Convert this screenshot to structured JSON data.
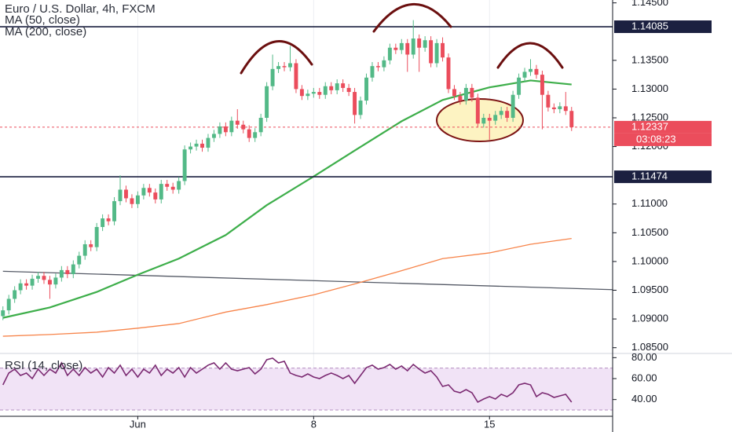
{
  "chart_data": {
    "type": "candlestick",
    "title": "Euro / U.S. Dollar, 4h, FXCM",
    "up_color": "#53b987",
    "down_color": "#eb4d5c",
    "open": [
      1.0905,
      1.0915,
      1.0935,
      1.095,
      1.0962,
      1.0958,
      1.097,
      1.0975,
      1.0968,
      1.096,
      1.0972,
      1.0985,
      1.0978,
      1.0995,
      1.101,
      1.103,
      1.1025,
      1.106,
      1.1075,
      1.107,
      1.1105,
      1.1125,
      1.111,
      1.11,
      1.1115,
      1.1128,
      1.112,
      1.1108,
      1.1135,
      1.113,
      1.1125,
      1.114,
      1.1195,
      1.12,
      1.1205,
      1.1198,
      1.1215,
      1.1222,
      1.1235,
      1.1225,
      1.1245,
      1.1238,
      1.123,
      1.1215,
      1.1225,
      1.125,
      1.1305,
      1.1335,
      1.134,
      1.1338,
      1.1345,
      1.13,
      1.1288,
      1.1292,
      1.1295,
      1.129,
      1.1305,
      1.1298,
      1.131,
      1.1302,
      1.1295,
      1.1255,
      1.128,
      1.132,
      1.134,
      1.1338,
      1.135,
      1.1372,
      1.1368,
      1.138,
      1.136,
      1.1388,
      1.1372,
      1.1385,
      1.1345,
      1.138,
      1.1355,
      1.13,
      1.1288,
      1.128,
      1.1302,
      1.1285,
      1.124,
      1.125,
      1.1245,
      1.1255,
      1.1262,
      1.125,
      1.129,
      1.132,
      1.133,
      1.1335,
      1.1325,
      1.129,
      1.1268,
      1.1265,
      1.127,
      1.1262
    ],
    "high": [
      1.0922,
      1.0942,
      1.0957,
      1.0969,
      1.0969,
      1.0977,
      1.0982,
      1.0982,
      1.0975,
      1.0979,
      1.0992,
      1.0992,
      1.1002,
      1.1017,
      1.1037,
      1.1037,
      1.1067,
      1.1082,
      1.1082,
      1.1112,
      1.115,
      1.1132,
      1.1117,
      1.1122,
      1.1135,
      1.1135,
      1.1127,
      1.1142,
      1.1142,
      1.1137,
      1.1147,
      1.1202,
      1.1207,
      1.1212,
      1.1212,
      1.1222,
      1.1229,
      1.1242,
      1.1242,
      1.1252,
      1.1265,
      1.1245,
      1.1237,
      1.1232,
      1.1257,
      1.1312,
      1.136,
      1.1347,
      1.1347,
      1.1375,
      1.1352,
      1.1307,
      1.1299,
      1.1302,
      1.1302,
      1.1312,
      1.1312,
      1.1317,
      1.1317,
      1.1309,
      1.1302,
      1.1287,
      1.1327,
      1.1347,
      1.1347,
      1.1357,
      1.1379,
      1.1379,
      1.1387,
      1.1387,
      1.142,
      1.1395,
      1.1392,
      1.1392,
      1.1387,
      1.139,
      1.1362,
      1.1307,
      1.1295,
      1.1309,
      1.1309,
      1.1292,
      1.1257,
      1.1257,
      1.1262,
      1.1269,
      1.1269,
      1.1297,
      1.1327,
      1.1337,
      1.1352,
      1.1342,
      1.1332,
      1.1297,
      1.1275,
      1.1277,
      1.1295,
      1.1269
    ],
    "low": [
      1.0898,
      1.0908,
      1.0928,
      1.0943,
      1.0951,
      1.0951,
      1.0963,
      1.0961,
      1.0935,
      1.0953,
      1.0965,
      1.0971,
      1.0971,
      1.0988,
      1.1003,
      1.1018,
      1.1018,
      1.1053,
      1.1063,
      1.1063,
      1.1098,
      1.1103,
      1.1093,
      1.1093,
      1.1108,
      1.1113,
      1.1101,
      1.1101,
      1.1123,
      1.1118,
      1.1118,
      1.1133,
      1.1188,
      1.1193,
      1.1191,
      1.1191,
      1.1208,
      1.1215,
      1.1218,
      1.1218,
      1.1231,
      1.1223,
      1.1208,
      1.1208,
      1.1218,
      1.1243,
      1.1298,
      1.1328,
      1.1331,
      1.1331,
      1.1293,
      1.1281,
      1.1281,
      1.1285,
      1.1283,
      1.1283,
      1.1291,
      1.1291,
      1.1295,
      1.1288,
      1.124,
      1.1248,
      1.1273,
      1.1313,
      1.1331,
      1.1331,
      1.1343,
      1.1361,
      1.1361,
      1.133,
      1.1353,
      1.133,
      1.1365,
      1.1338,
      1.1338,
      1.1348,
      1.1293,
      1.1281,
      1.1273,
      1.1273,
      1.1278,
      1.1233,
      1.1233,
      1.1212,
      1.1238,
      1.1248,
      1.1243,
      1.1243,
      1.1283,
      1.1313,
      1.1323,
      1.1318,
      1.123,
      1.1261,
      1.1258,
      1.1258,
      1.1255,
      1.1227
    ],
    "close": [
      1.0915,
      1.0935,
      1.095,
      1.0962,
      1.0958,
      1.097,
      1.0975,
      1.0968,
      1.096,
      1.0972,
      1.0985,
      1.0978,
      1.0995,
      1.101,
      1.103,
      1.1025,
      1.106,
      1.1075,
      1.107,
      1.1105,
      1.1125,
      1.111,
      1.11,
      1.1115,
      1.1128,
      1.112,
      1.1108,
      1.1135,
      1.113,
      1.1125,
      1.114,
      1.1195,
      1.12,
      1.1205,
      1.1198,
      1.1215,
      1.1222,
      1.1235,
      1.1225,
      1.1245,
      1.1238,
      1.123,
      1.1215,
      1.1225,
      1.125,
      1.1305,
      1.1335,
      1.134,
      1.1338,
      1.1345,
      1.13,
      1.1288,
      1.1292,
      1.1295,
      1.129,
      1.1305,
      1.1298,
      1.131,
      1.1302,
      1.1295,
      1.1255,
      1.128,
      1.132,
      1.134,
      1.1338,
      1.135,
      1.1372,
      1.1368,
      1.138,
      1.136,
      1.1388,
      1.1372,
      1.1385,
      1.1345,
      1.138,
      1.1355,
      1.13,
      1.1288,
      1.128,
      1.1302,
      1.1285,
      1.124,
      1.125,
      1.1245,
      1.1255,
      1.1262,
      1.125,
      1.129,
      1.132,
      1.133,
      1.1335,
      1.1325,
      1.129,
      1.1268,
      1.1265,
      1.127,
      1.1262,
      1.12337
    ],
    "overlays": [
      {
        "name": "MA (50, close)",
        "color": "#3dae4a",
        "x": [
          0,
          8,
          16,
          23,
          30,
          38,
          45,
          53,
          60,
          68,
          75,
          83,
          90,
          97
        ],
        "values": [
          1.0902,
          1.092,
          1.0947,
          1.0977,
          1.1005,
          1.1046,
          1.1098,
          1.1148,
          1.1193,
          1.1244,
          1.1281,
          1.1303,
          1.1315,
          1.1308
        ]
      },
      {
        "name": "MA (200, close)",
        "color": "#f7844a",
        "x": [
          0,
          8,
          16,
          23,
          30,
          38,
          45,
          53,
          60,
          68,
          75,
          83,
          90,
          97
        ],
        "values": [
          1.087,
          1.0873,
          1.0877,
          1.0884,
          1.0892,
          1.0912,
          1.0925,
          1.0942,
          1.0961,
          1.0984,
          1.1005,
          1.1015,
          1.103,
          1.104
        ]
      }
    ],
    "trendline": {
      "color": "#555a66",
      "x": [
        0,
        104
      ],
      "values": [
        1.0983,
        1.0951
      ]
    },
    "levels": [
      1.14085,
      1.11474
    ],
    "level_color": "#1b2040",
    "countdown": "03:08:23",
    "xlim": [
      -0.5,
      104
    ],
    "xticks": [
      {
        "value": 23,
        "label": "Jun"
      },
      {
        "value": 53,
        "label": "8"
      },
      {
        "value": 83,
        "label": "15"
      }
    ],
    "ylim": [
      1.084,
      1.1455
    ],
    "yticks": [
      {
        "value": 1.145,
        "label": "1.14500"
      },
      {
        "value": 1.135,
        "label": "1.13500"
      },
      {
        "value": 1.13,
        "label": "1.13000"
      },
      {
        "value": 1.125,
        "label": "1.12500"
      },
      {
        "value": 1.12,
        "label": "1.12000"
      },
      {
        "value": 1.11,
        "label": "1.11000"
      },
      {
        "value": 1.105,
        "label": "1.10500"
      },
      {
        "value": 1.1,
        "label": "1.10000"
      },
      {
        "value": 1.095,
        "label": "1.09500"
      },
      {
        "value": 1.09,
        "label": "1.09000"
      },
      {
        "value": 1.085,
        "label": "1.08500"
      }
    ],
    "grid": true,
    "rsi": {
      "name": "RSI (14, close)",
      "color": "#7b2a72",
      "band": [
        30,
        70
      ],
      "band_color": "#f1e3f6",
      "ylim": [
        24,
        84
      ],
      "yticks": [
        {
          "value": 80,
          "label": "80.00"
        },
        {
          "value": 60,
          "label": "60.00"
        },
        {
          "value": 40,
          "label": "40.00"
        }
      ],
      "values": [
        54,
        65.3,
        69,
        63,
        65.3,
        60,
        69,
        63,
        69,
        65.3,
        75,
        63,
        69,
        63,
        70.5,
        65.3,
        69,
        61.5,
        70.5,
        65.3,
        72.8,
        63,
        69,
        61.5,
        69,
        65.3,
        72.8,
        63,
        69,
        65.3,
        70.5,
        61.5,
        70.5,
        65.3,
        69,
        72.8,
        75,
        69,
        75,
        69,
        67.5,
        69,
        70.5,
        64.5,
        69,
        78,
        79.5,
        75,
        76.5,
        65.3,
        63,
        61.5,
        64.5,
        61.5,
        60,
        63,
        65.3,
        63,
        60,
        63,
        55.5,
        63,
        70.5,
        72.8,
        69,
        70.5,
        73.5,
        69,
        72,
        67.5,
        73.5,
        69,
        65.3,
        67.5,
        61.5,
        52.5,
        54,
        48,
        46.5,
        49.5,
        46.5,
        37.5,
        40.5,
        42.8,
        40.5,
        45,
        42.8,
        46.5,
        54,
        55.5,
        54,
        42.8,
        46.5,
        45,
        42,
        43.5,
        45,
        37.5
      ]
    }
  }
}
